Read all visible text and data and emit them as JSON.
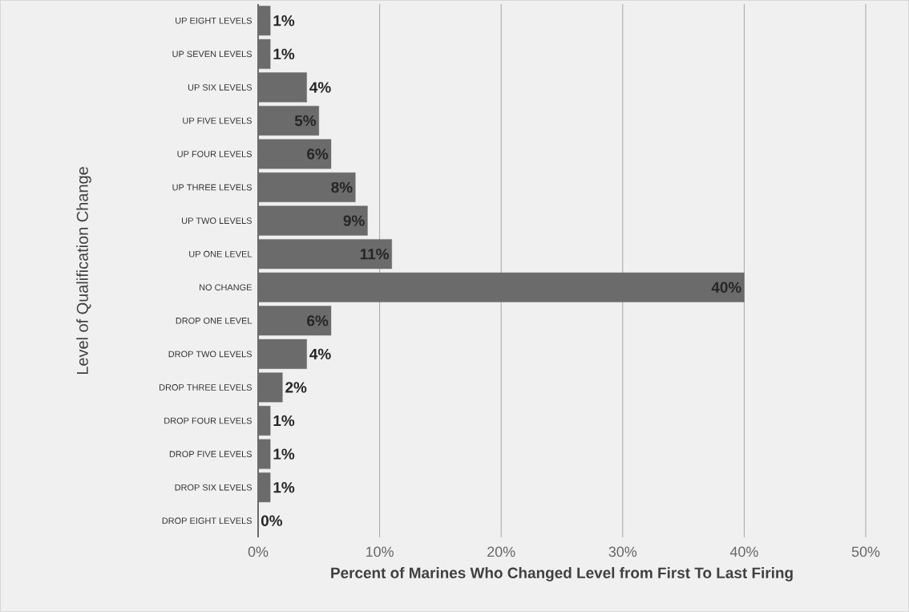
{
  "chart_data": {
    "type": "bar",
    "orientation": "horizontal",
    "xlabel": "Percent of Marines Who Changed Level from First To Last Firing",
    "ylabel": "Level of Qualification Change",
    "categories": [
      "UP EIGHT LEVELS",
      "UP SEVEN LEVELS",
      "UP SIX LEVELS",
      "UP FIVE LEVELS",
      "UP FOUR LEVELS",
      "UP THREE LEVELS",
      "UP TWO LEVELS",
      "UP ONE LEVEL",
      "NO CHANGE",
      "DROP ONE LEVEL",
      "DROP TWO LEVELS",
      "DROP THREE LEVELS",
      "DROP FOUR LEVELS",
      "DROP  FIVE LEVELS",
      "DROP SIX LEVELS",
      "DROP EIGHT LEVELS"
    ],
    "values": [
      1,
      1,
      4,
      5,
      6,
      8,
      9,
      11,
      40,
      6,
      4,
      2,
      1,
      1,
      1,
      0
    ],
    "value_labels": [
      "1%",
      "1%",
      "4%",
      "5%",
      "6%",
      "8%",
      "9%",
      "11%",
      "40%",
      "6%",
      "4%",
      "2%",
      "1%",
      "1%",
      "1%",
      "0%"
    ],
    "color": "#6b6b6b",
    "xlim": [
      0,
      50
    ],
    "xticks": [
      {
        "value": 0,
        "label": "0%"
      },
      {
        "value": 10,
        "label": "10%"
      },
      {
        "value": 20,
        "label": "20%"
      },
      {
        "value": 30,
        "label": "30%"
      },
      {
        "value": 40,
        "label": "40%"
      },
      {
        "value": 50,
        "label": "50%"
      }
    ],
    "grid": "x"
  }
}
